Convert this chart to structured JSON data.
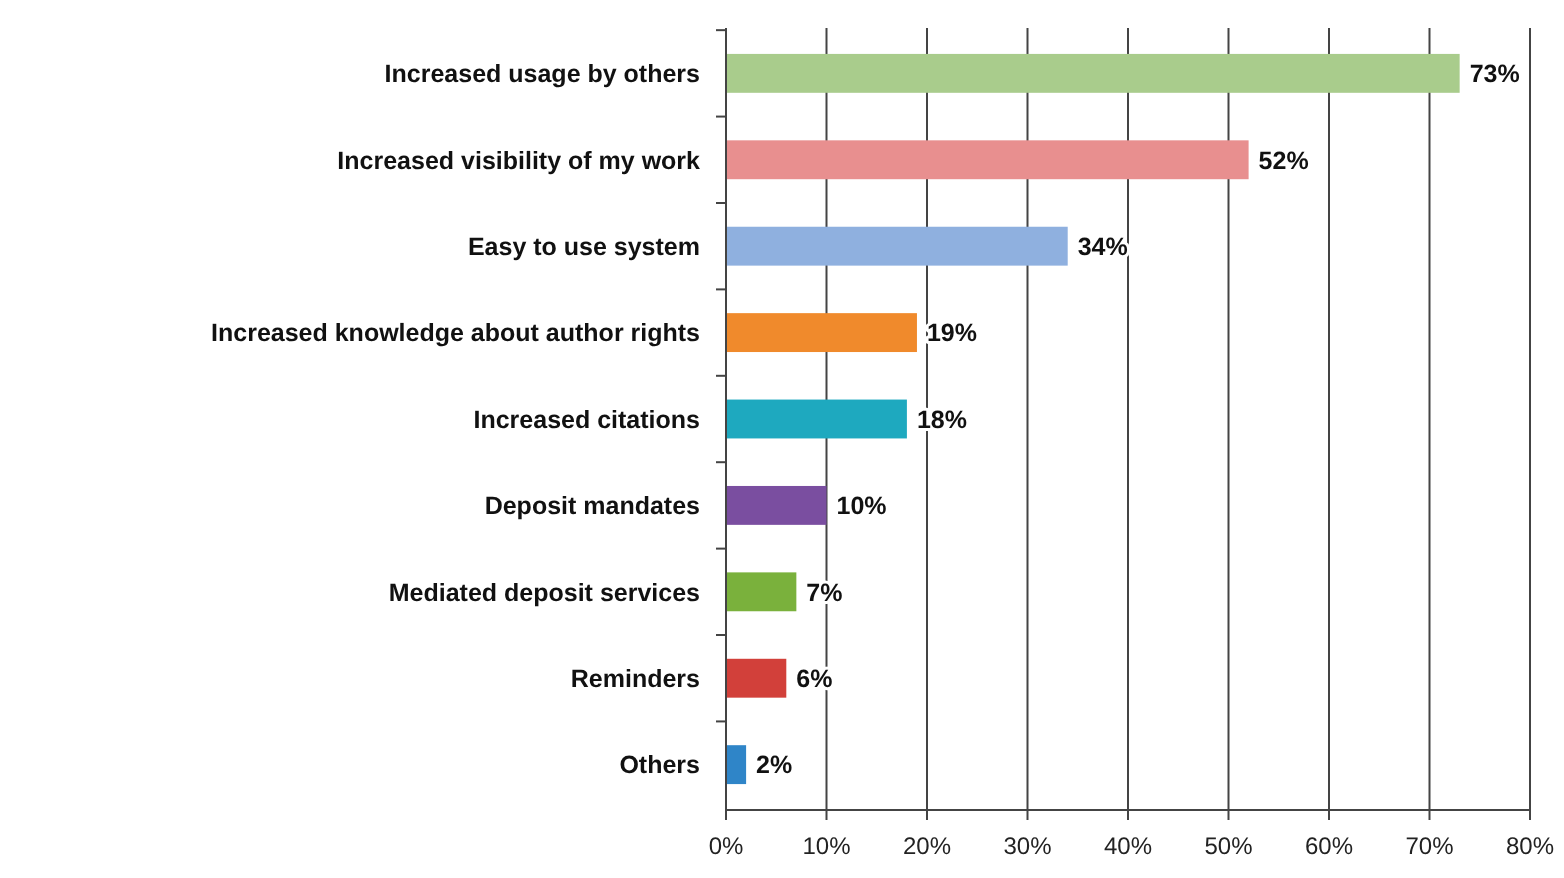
{
  "chart_data": {
    "type": "bar",
    "orientation": "horizontal",
    "categories": [
      "Increased usage by others",
      "Increased visibility of my work",
      "Easy to use system",
      "Increased knowledge about author rights",
      "Increased citations",
      "Deposit mandates",
      "Mediated deposit services",
      "Reminders",
      "Others"
    ],
    "values": [
      73,
      52,
      34,
      19,
      18,
      10,
      7,
      6,
      2
    ],
    "colors": [
      "#a9cc8c",
      "#e88f8f",
      "#8fb0df",
      "#f08a2c",
      "#1ea9bf",
      "#7a4ea0",
      "#7ab13c",
      "#d2403a",
      "#2f85c8"
    ],
    "xlim": [
      0,
      80
    ],
    "xticks": [
      {
        "value": 0,
        "label": "0%"
      },
      {
        "value": 10,
        "label": "10%"
      },
      {
        "value": 20,
        "label": "20%"
      },
      {
        "value": 30,
        "label": "30%"
      },
      {
        "value": 40,
        "label": "40%"
      },
      {
        "value": 50,
        "label": "50%"
      },
      {
        "value": 60,
        "label": "60%"
      },
      {
        "value": 70,
        "label": "70%"
      },
      {
        "value": 80,
        "label": "80%"
      }
    ],
    "grid": "x",
    "value_labels": [
      "73%",
      "52%",
      "34%",
      "19%",
      "18%",
      "10%",
      "7%",
      "6%",
      "2%"
    ]
  }
}
